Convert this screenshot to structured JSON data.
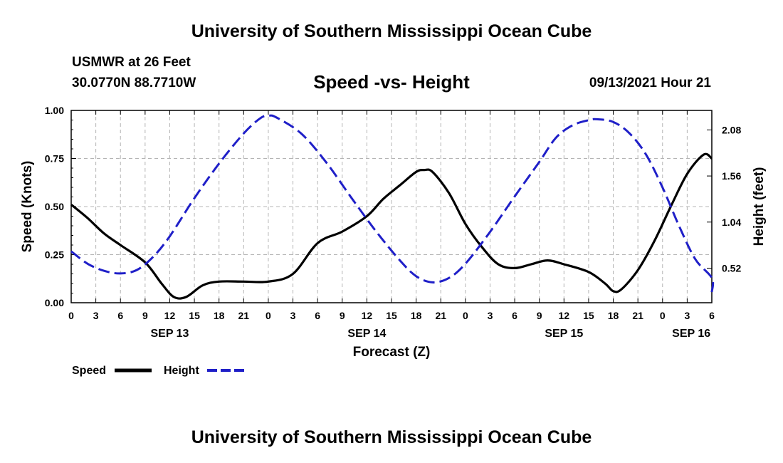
{
  "header": {
    "title": "University of Southern Mississippi Ocean Cube",
    "station": "USMWR at 26 Feet",
    "coords": "30.0770N  88.7710W",
    "datetime": "09/13/2021 Hour 21"
  },
  "footer": {
    "title": "University of Southern Mississippi Ocean Cube"
  },
  "chart_data": {
    "type": "line",
    "title": "Speed -vs- Height",
    "xlabel": "Forecast (Z)",
    "ylabel": "Speed (Knots)",
    "y2label": "Height (feet)",
    "x_unit": "hours from Sep 13 00Z",
    "xlim": [
      0,
      78
    ],
    "ylim": [
      0,
      1
    ],
    "y2lim": [
      0.13,
      2.3
    ],
    "grid": true,
    "x_tick_step": 3,
    "x_tick_labels": [
      "0",
      "3",
      "6",
      "9",
      "12",
      "15",
      "18",
      "21",
      "0",
      "3",
      "6",
      "9",
      "12",
      "15",
      "18",
      "21",
      "0",
      "3",
      "6",
      "9",
      "12",
      "15",
      "18",
      "21",
      "0",
      "3",
      "6"
    ],
    "y_ticks": [
      {
        "value": 0.0,
        "label": "0.00"
      },
      {
        "value": 0.25,
        "label": "0.25"
      },
      {
        "value": 0.5,
        "label": "0.50"
      },
      {
        "value": 0.75,
        "label": "0.75"
      },
      {
        "value": 1.0,
        "label": "1.00"
      }
    ],
    "y2_ticks": [
      {
        "value": 0.52,
        "label": "0.52"
      },
      {
        "value": 1.04,
        "label": "1.04"
      },
      {
        "value": 1.56,
        "label": "1.56"
      },
      {
        "value": 2.08,
        "label": "2.08"
      }
    ],
    "day_labels": [
      {
        "x": 12,
        "label": "SEP 13"
      },
      {
        "x": 36,
        "label": "SEP 14"
      },
      {
        "x": 60,
        "label": "SEP 15"
      },
      {
        "x": 75.5,
        "label": "SEP 16"
      }
    ],
    "legend_position": "bottom-left",
    "series": [
      {
        "name": "Speed",
        "axis": "left",
        "color": "#000000",
        "style": "solid",
        "points": [
          [
            0,
            0.51
          ],
          [
            2,
            0.44
          ],
          [
            4,
            0.36
          ],
          [
            6,
            0.3
          ],
          [
            9,
            0.21
          ],
          [
            11,
            0.1
          ],
          [
            12.5,
            0.03
          ],
          [
            14,
            0.03
          ],
          [
            16,
            0.09
          ],
          [
            18,
            0.11
          ],
          [
            21,
            0.11
          ],
          [
            24,
            0.11
          ],
          [
            27,
            0.15
          ],
          [
            30,
            0.31
          ],
          [
            33,
            0.37
          ],
          [
            36,
            0.45
          ],
          [
            38,
            0.54
          ],
          [
            40,
            0.61
          ],
          [
            42,
            0.68
          ],
          [
            43,
            0.69
          ],
          [
            44,
            0.68
          ],
          [
            46,
            0.57
          ],
          [
            48,
            0.41
          ],
          [
            50,
            0.29
          ],
          [
            52,
            0.2
          ],
          [
            54,
            0.18
          ],
          [
            56,
            0.2
          ],
          [
            58,
            0.22
          ],
          [
            60,
            0.2
          ],
          [
            63,
            0.16
          ],
          [
            65,
            0.1
          ],
          [
            66,
            0.06
          ],
          [
            67,
            0.07
          ],
          [
            69,
            0.17
          ],
          [
            71,
            0.32
          ],
          [
            73,
            0.5
          ],
          [
            75,
            0.67
          ],
          [
            77,
            0.77
          ],
          [
            78,
            0.75
          ]
        ]
      },
      {
        "name": "Height",
        "axis": "right",
        "color": "#1f1fc8",
        "style": "dashed",
        "points": [
          [
            0,
            0.71
          ],
          [
            2,
            0.57
          ],
          [
            4,
            0.49
          ],
          [
            6,
            0.46
          ],
          [
            8,
            0.5
          ],
          [
            10,
            0.65
          ],
          [
            12,
            0.88
          ],
          [
            15,
            1.31
          ],
          [
            18,
            1.7
          ],
          [
            21,
            2.04
          ],
          [
            23,
            2.21
          ],
          [
            24,
            2.24
          ],
          [
            25,
            2.22
          ],
          [
            28,
            2.04
          ],
          [
            31,
            1.72
          ],
          [
            34,
            1.33
          ],
          [
            37,
            0.95
          ],
          [
            40,
            0.61
          ],
          [
            42,
            0.43
          ],
          [
            44,
            0.36
          ],
          [
            46,
            0.41
          ],
          [
            48,
            0.57
          ],
          [
            51,
            0.93
          ],
          [
            54,
            1.33
          ],
          [
            57,
            1.72
          ],
          [
            59,
            1.99
          ],
          [
            61,
            2.13
          ],
          [
            63,
            2.19
          ],
          [
            64,
            2.2
          ],
          [
            66,
            2.17
          ],
          [
            68,
            2.04
          ],
          [
            70,
            1.8
          ],
          [
            72,
            1.43
          ],
          [
            74,
            1.0
          ],
          [
            76,
            0.62
          ],
          [
            78,
            0.41
          ],
          [
            78,
            0.25
          ]
        ]
      }
    ]
  }
}
